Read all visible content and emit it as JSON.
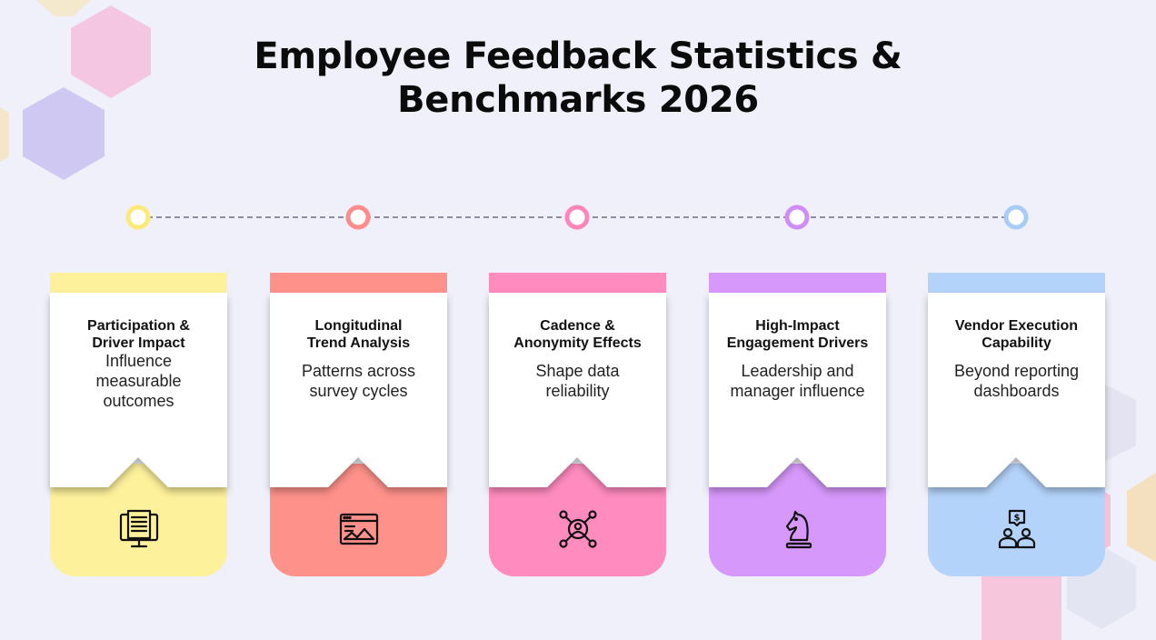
{
  "title": {
    "line1": "Employee Feedback Statistics &",
    "line2": "Benchmarks 2026"
  },
  "cards": [
    {
      "heading": "Participation &\nDriver Impact",
      "description": "Influence measurable outcomes",
      "icon": "computer-monitor-icon",
      "color": "#fef19b",
      "node_color": "#fde97a"
    },
    {
      "heading": "Longitudinal\nTrend Analysis",
      "description": "Patterns across survey cycles",
      "icon": "browser-image-icon",
      "color": "#ff918b",
      "node_color": "#ff8c8a"
    },
    {
      "heading": "Cadence &\nAnonymity Effects",
      "description": "Shape data reliability",
      "icon": "network-user-icon",
      "color": "#ff8bbf",
      "node_color": "#ff85bb"
    },
    {
      "heading": "High-Impact\nEngagement Drivers",
      "description": "Leadership and manager influence",
      "icon": "chess-knight-icon",
      "color": "#d798fb",
      "node_color": "#d08df6"
    },
    {
      "heading": "Vendor Execution\nCapability",
      "description": "Beyond reporting dashboards",
      "icon": "team-cost-icon",
      "color": "#b4d3fb",
      "node_color": "#a9ccf7"
    }
  ]
}
